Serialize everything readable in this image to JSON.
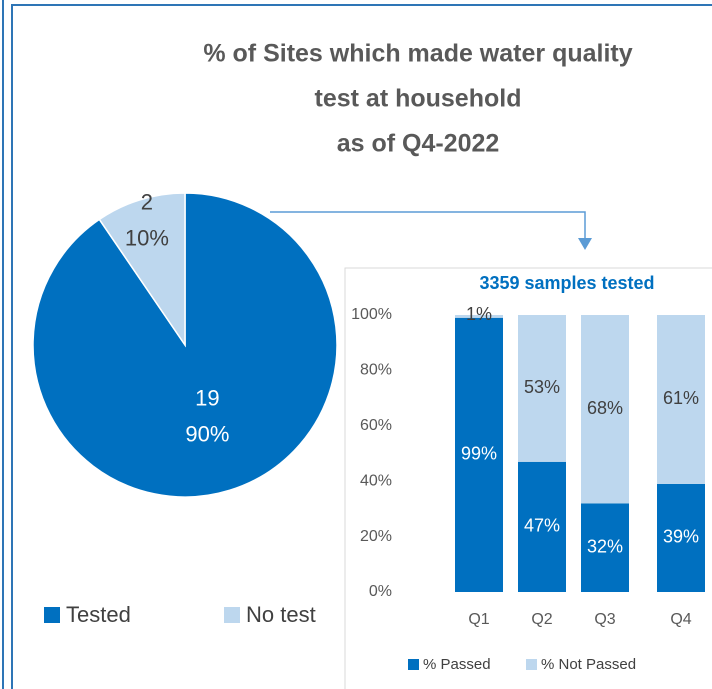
{
  "chart_data": [
    {
      "type": "pie",
      "title": "% of Sites which made water quality test at household as of Q4-2022",
      "title_lines": [
        "% of Sites which made water quality",
        "test at household",
        "as of Q4-2022"
      ],
      "categories": [
        "Tested",
        "No test"
      ],
      "values": [
        19,
        2
      ],
      "percents": [
        90,
        10
      ],
      "percent_labels": [
        "90%",
        "10%"
      ],
      "colors": [
        "#0070c0",
        "#bdd7ee"
      ],
      "legend": "bottom"
    },
    {
      "type": "stacked_bar",
      "title": "3359 samples tested",
      "categories": [
        "Q1",
        "Q2",
        "Q3",
        "Q4"
      ],
      "series": [
        {
          "name": "% Passed",
          "color": "#0070c0",
          "values": [
            99,
            47,
            32,
            39
          ],
          "value_labels": [
            "99%",
            "47%",
            "32%",
            "39%"
          ]
        },
        {
          "name": "% Not Passed",
          "color": "#bdd7ee",
          "values": [
            1,
            53,
            68,
            61
          ],
          "value_labels": [
            "1%",
            "53%",
            "68%",
            "61%"
          ]
        }
      ],
      "ylim": [
        0,
        100
      ],
      "yticks": [
        {
          "value": 0,
          "label": "0%"
        },
        {
          "value": 20,
          "label": "20%"
        },
        {
          "value": 40,
          "label": "40%"
        },
        {
          "value": 60,
          "label": "60%"
        },
        {
          "value": 80,
          "label": "80%"
        },
        {
          "value": 100,
          "label": "100%"
        }
      ],
      "legend": "bottom"
    }
  ]
}
